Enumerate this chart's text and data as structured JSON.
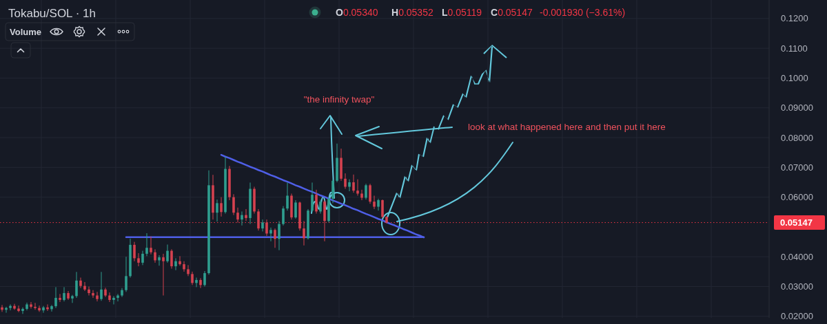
{
  "chart_data": {
    "type": "candlestick",
    "title": "Tokabu/SOL · 1h",
    "annotations": [
      "O0.05340",
      "H0.05352",
      "L0.05119",
      "C0.05147",
      "-0.001930 (−3.61%)",
      "Volume",
      "\"the infinity twap\"",
      "look at what happened here and then put it here"
    ],
    "categories": [
      null,
      null,
      null,
      null,
      null,
      null,
      null,
      null,
      null,
      null,
      null,
      null,
      null,
      null,
      null,
      null,
      null,
      null,
      null,
      null,
      null,
      null,
      null,
      null,
      null,
      null,
      null,
      null,
      null,
      null,
      null,
      null,
      null,
      null,
      null,
      null,
      null,
      null,
      null,
      null,
      null,
      null,
      null,
      null,
      null,
      null,
      null,
      null,
      null,
      null,
      null,
      null,
      null,
      null,
      null,
      null,
      null,
      null,
      null,
      null,
      null,
      null,
      null,
      null,
      null,
      null,
      null,
      null,
      null,
      null,
      null,
      null,
      null,
      null,
      null,
      null,
      null,
      null,
      null,
      null,
      null,
      null,
      null,
      null,
      null,
      null,
      null,
      null,
      null,
      null,
      null,
      null,
      null,
      null,
      null,
      null,
      null,
      null,
      null,
      null,
      null,
      null,
      null,
      null,
      null,
      null,
      null,
      null,
      null,
      null,
      null,
      null,
      null,
      null,
      null,
      null,
      null,
      null,
      null,
      null,
      null,
      null,
      null,
      null,
      null,
      null,
      null,
      null,
      null,
      null,
      null,
      null,
      null,
      null,
      null,
      null,
      null,
      null,
      null,
      null,
      null,
      null,
      null,
      null,
      null,
      null,
      null,
      null,
      null,
      null,
      null,
      null,
      null,
      null,
      null,
      null,
      null,
      null,
      null,
      null,
      null,
      null,
      null,
      null,
      null,
      null,
      null,
      null,
      null,
      null,
      null,
      null,
      null,
      null,
      null,
      null,
      null,
      null,
      null,
      null,
      null,
      null,
      null,
      null,
      null,
      null
    ],
    "ohlc": [
      [
        0.023,
        0.0238,
        0.0215,
        0.0222
      ],
      [
        0.0222,
        0.0232,
        0.0212,
        0.0228
      ],
      [
        0.0228,
        0.024,
        0.022,
        0.0235
      ],
      [
        0.0235,
        0.0242,
        0.0222,
        0.0226
      ],
      [
        0.0226,
        0.0236,
        0.0214,
        0.0218
      ],
      [
        0.0218,
        0.023,
        0.0208,
        0.0225
      ],
      [
        0.0225,
        0.0246,
        0.022,
        0.024
      ],
      [
        0.024,
        0.0248,
        0.0226,
        0.0232
      ],
      [
        0.0232,
        0.0245,
        0.0222,
        0.0228
      ],
      [
        0.0228,
        0.0236,
        0.0215,
        0.022
      ],
      [
        0.022,
        0.0235,
        0.0212,
        0.023
      ],
      [
        0.023,
        0.024,
        0.0218,
        0.0224
      ],
      [
        0.0224,
        0.0238,
        0.0216,
        0.0234
      ],
      [
        0.0234,
        0.0298,
        0.0228,
        0.0262
      ],
      [
        0.0262,
        0.0275,
        0.0248,
        0.0255
      ],
      [
        0.0255,
        0.0298,
        0.025,
        0.0278
      ],
      [
        0.0278,
        0.0285,
        0.0255,
        0.026
      ],
      [
        0.026,
        0.0272,
        0.0245,
        0.0268
      ],
      [
        0.0268,
        0.0349,
        0.0262,
        0.032
      ],
      [
        0.032,
        0.033,
        0.0295,
        0.0302
      ],
      [
        0.0302,
        0.0315,
        0.0285,
        0.029
      ],
      [
        0.029,
        0.03,
        0.027,
        0.0278
      ],
      [
        0.0278,
        0.0288,
        0.0262,
        0.027
      ],
      [
        0.027,
        0.0282,
        0.025,
        0.0258
      ],
      [
        0.0258,
        0.0349,
        0.0252,
        0.029
      ],
      [
        0.029,
        0.0296,
        0.0265,
        0.027
      ],
      [
        0.027,
        0.028,
        0.0248,
        0.0255
      ],
      [
        0.0255,
        0.0268,
        0.024,
        0.0262
      ],
      [
        0.0262,
        0.0275,
        0.025,
        0.027
      ],
      [
        0.027,
        0.0295,
        0.0265,
        0.0288
      ],
      [
        0.0288,
        0.04,
        0.0282,
        0.0335
      ],
      [
        0.0335,
        0.0461,
        0.033,
        0.044
      ],
      [
        0.044,
        0.045,
        0.0385,
        0.0395
      ],
      [
        0.0395,
        0.0412,
        0.0368,
        0.038
      ],
      [
        0.038,
        0.042,
        0.0372,
        0.041
      ],
      [
        0.041,
        0.0479,
        0.0402,
        0.043
      ],
      [
        0.043,
        0.0468,
        0.0408,
        0.0415
      ],
      [
        0.0415,
        0.0425,
        0.038,
        0.0388
      ],
      [
        0.0388,
        0.0405,
        0.037,
        0.0398
      ],
      [
        0.0398,
        0.041,
        0.027,
        0.0385
      ],
      [
        0.0385,
        0.0441,
        0.038,
        0.042
      ],
      [
        0.042,
        0.0425,
        0.036,
        0.0368
      ],
      [
        0.0368,
        0.0395,
        0.0355,
        0.0385
      ],
      [
        0.0385,
        0.0402,
        0.037,
        0.0375
      ],
      [
        0.0375,
        0.0385,
        0.035,
        0.0358
      ],
      [
        0.0358,
        0.0372,
        0.0335,
        0.0342
      ],
      [
        0.0342,
        0.035,
        0.0305,
        0.0312
      ],
      [
        0.0312,
        0.033,
        0.0298,
        0.0322
      ],
      [
        0.0322,
        0.0328,
        0.0295,
        0.0305
      ],
      [
        0.0305,
        0.0352,
        0.03,
        0.0345
      ],
      [
        0.0345,
        0.069,
        0.034,
        0.064
      ],
      [
        0.064,
        0.0675,
        0.0525,
        0.0548
      ],
      [
        0.0548,
        0.0592,
        0.0518,
        0.058
      ],
      [
        0.058,
        0.06,
        0.0535,
        0.055
      ],
      [
        0.055,
        0.0736,
        0.0545,
        0.0695
      ],
      [
        0.0695,
        0.0705,
        0.059,
        0.06
      ],
      [
        0.06,
        0.061,
        0.054,
        0.0548
      ],
      [
        0.0548,
        0.0565,
        0.0515,
        0.0525
      ],
      [
        0.0525,
        0.0552,
        0.0505,
        0.054
      ],
      [
        0.054,
        0.056,
        0.052,
        0.053
      ],
      [
        0.053,
        0.0649,
        0.051,
        0.0628
      ],
      [
        0.0628,
        0.0635,
        0.0545,
        0.0552
      ],
      [
        0.0552,
        0.056,
        0.0488,
        0.0495
      ],
      [
        0.0495,
        0.0525,
        0.0485,
        0.0515
      ],
      [
        0.0515,
        0.0525,
        0.047,
        0.0478
      ],
      [
        0.0478,
        0.0498,
        0.0452,
        0.049
      ],
      [
        0.049,
        0.0495,
        0.043,
        0.046
      ],
      [
        0.046,
        0.052,
        0.0422,
        0.051
      ],
      [
        0.051,
        0.057,
        0.0505,
        0.0562
      ],
      [
        0.0562,
        0.0649,
        0.0555,
        0.0605
      ],
      [
        0.0605,
        0.0612,
        0.0525,
        0.0532
      ],
      [
        0.0532,
        0.059,
        0.0528,
        0.0582
      ],
      [
        0.0582,
        0.0585,
        0.0488,
        0.0495
      ],
      [
        0.0495,
        0.052,
        0.0438,
        0.0462
      ],
      [
        0.0462,
        0.056,
        0.0458,
        0.0555
      ],
      [
        0.0555,
        0.0649,
        0.055,
        0.0608
      ],
      [
        0.0608,
        0.0625,
        0.0545,
        0.0552
      ],
      [
        0.0552,
        0.0592,
        0.0545,
        0.0585
      ],
      [
        0.0585,
        0.059,
        0.0452,
        0.052
      ],
      [
        0.052,
        0.06,
        0.0515,
        0.0595
      ],
      [
        0.0595,
        0.066,
        0.058,
        0.0655
      ],
      [
        0.0655,
        0.078,
        0.065,
        0.0732
      ],
      [
        0.0732,
        0.0763,
        0.0655,
        0.0662
      ],
      [
        0.0662,
        0.068,
        0.0628,
        0.0635
      ],
      [
        0.0635,
        0.066,
        0.062,
        0.065
      ],
      [
        0.065,
        0.0676,
        0.0615,
        0.0622
      ],
      [
        0.0622,
        0.066,
        0.0605,
        0.0612
      ],
      [
        0.0612,
        0.0625,
        0.059,
        0.0598
      ],
      [
        0.0598,
        0.0645,
        0.0592,
        0.064
      ],
      [
        0.064,
        0.0645,
        0.0578,
        0.0585
      ],
      [
        0.0585,
        0.0605,
        0.056,
        0.0568
      ],
      [
        0.0568,
        0.0595,
        0.0555,
        0.059
      ],
      [
        0.059,
        0.0592,
        0.053,
        0.0534
      ],
      [
        0.0534,
        0.05352,
        0.05119,
        0.05147
      ],
      null,
      null,
      null,
      null,
      null,
      null,
      null,
      null,
      null,
      null,
      null,
      null,
      null,
      null,
      null,
      null,
      null,
      null,
      null,
      null,
      null,
      null,
      null,
      null,
      null,
      null,
      null,
      null,
      null,
      null,
      null,
      null,
      null,
      null,
      null,
      null,
      null,
      null,
      null,
      null,
      null,
      null,
      null,
      null,
      null,
      null,
      null,
      null,
      null,
      null,
      null,
      null,
      null,
      null,
      null,
      null,
      null,
      null,
      null,
      null,
      null,
      null,
      null,
      null,
      null,
      null,
      null,
      null,
      null,
      null,
      null,
      null,
      null,
      null,
      null,
      null,
      null,
      null,
      null,
      null,
      null,
      null,
      null,
      null,
      null,
      null,
      null,
      null,
      null,
      null,
      null,
      null
    ],
    "series": [
      {
        "type": "line",
        "color": "#4f5fe8",
        "values": [
          null,
          null,
          null,
          null,
          null,
          null,
          null,
          null,
          null,
          null,
          null,
          null,
          null,
          null,
          null,
          null,
          null,
          null,
          null,
          null,
          null,
          null,
          null,
          null,
          null,
          null,
          null,
          null,
          null,
          null,
          0.0466,
          0.0466,
          0.0466,
          0.0466,
          0.0466,
          0.0466,
          0.0466,
          0.0466,
          0.0466,
          0.0466,
          0.0466,
          0.0466,
          0.0466,
          0.0466,
          0.0466,
          0.0466,
          0.0466,
          0.0466,
          0.0466,
          0.0466,
          0.0466,
          0.0466,
          0.0466,
          0.0466,
          0.0466,
          0.0466,
          0.0466,
          0.0466,
          0.0466,
          0.0466,
          0.0466,
          0.0466,
          0.0466,
          0.0466,
          0.0466,
          0.0466,
          0.0466,
          0.0466,
          0.0466,
          0.0466,
          0.0466,
          0.0466,
          0.0466,
          0.0466,
          0.0466,
          0.0466,
          0.0466,
          0.0466,
          0.0466,
          0.0466,
          0.0466,
          0.0466,
          0.0466,
          0.0466,
          0.0466,
          0.0466,
          0.0466,
          0.0466,
          0.0466,
          0.0466,
          0.0466,
          0.0466,
          0.0466,
          0.0466,
          0.0466,
          0.0466,
          0.0466,
          0.0466,
          0.0466,
          0.0466,
          0.0466,
          0.0466,
          0.0466,
          null,
          null,
          null,
          null,
          null,
          null,
          null,
          null,
          null,
          null,
          null,
          null,
          null,
          null,
          null,
          null,
          null,
          null,
          null,
          null,
          null,
          null,
          null,
          null,
          null,
          null,
          null,
          null,
          null,
          null,
          null,
          null,
          null,
          null,
          null,
          null,
          null,
          null,
          null,
          null,
          null,
          null,
          null,
          null,
          null,
          null,
          null,
          null,
          null,
          null,
          null,
          null,
          null,
          null,
          null,
          null,
          null,
          null,
          null,
          null,
          null,
          null,
          null,
          null,
          null,
          null,
          null,
          null,
          null,
          null,
          null,
          null,
          null,
          null,
          null,
          null,
          null,
          null,
          null,
          null,
          null,
          null,
          null
        ]
      },
      {
        "type": "line",
        "color": "#4f5fe8",
        "values": [
          null,
          null,
          null,
          null,
          null,
          null,
          null,
          null,
          null,
          null,
          null,
          null,
          null,
          null,
          null,
          null,
          null,
          null,
          null,
          null,
          null,
          null,
          null,
          null,
          null,
          null,
          null,
          null,
          null,
          null,
          null,
          null,
          null,
          null,
          null,
          null,
          null,
          null,
          null,
          null,
          null,
          null,
          null,
          null,
          null,
          null,
          null,
          null,
          null,
          null,
          null,
          null,
          null,
          0.0742,
          0.0736,
          0.0731,
          0.0725,
          0.0719,
          0.0714,
          0.0708,
          0.0702,
          0.0697,
          0.0691,
          0.0686,
          0.068,
          0.0674,
          0.0669,
          0.0663,
          0.0657,
          0.0652,
          0.0646,
          0.064,
          0.0635,
          0.0629,
          0.0623,
          0.0618,
          0.0612,
          0.0606,
          0.0601,
          0.0595,
          0.0589,
          0.0584,
          0.0578,
          0.0573,
          0.0567,
          0.0561,
          0.0556,
          0.055,
          0.0544,
          0.0539,
          0.0533,
          0.0527,
          0.0522,
          0.0516,
          0.051,
          0.0505,
          0.0499,
          0.0493,
          0.0488,
          0.0482,
          0.0476,
          0.0471,
          0.0465,
          null,
          null,
          null,
          null,
          null,
          null,
          null,
          null,
          null,
          null,
          null,
          null,
          null,
          null,
          null,
          null,
          null,
          null,
          null,
          null,
          null,
          null,
          null,
          null,
          null,
          null,
          null,
          null,
          null,
          null,
          null,
          null,
          null,
          null,
          null,
          null,
          null,
          null,
          null,
          null,
          null,
          null,
          null,
          null,
          null,
          null,
          null,
          null,
          null,
          null,
          null,
          null,
          null,
          null,
          null,
          null,
          null,
          null,
          null,
          null,
          null,
          null,
          null,
          null,
          null,
          null,
          null,
          null,
          null,
          null,
          null,
          null,
          null,
          null,
          null,
          null,
          null,
          null,
          null,
          null,
          null,
          null,
          null
        ]
      }
    ],
    "ylim": [
      0.0195,
      0.1262
    ],
    "yticks": [
      {
        "value": 0.02,
        "label": "0.02000"
      },
      {
        "value": 0.03,
        "label": "0.03000"
      },
      {
        "value": 0.04,
        "label": "0.04000"
      },
      {
        "value": 0.06,
        "label": "0.06000"
      },
      {
        "value": 0.07,
        "label": "0.07000"
      },
      {
        "value": 0.08,
        "label": "0.08000"
      },
      {
        "value": 0.09,
        "label": "0.09000"
      },
      {
        "value": 0.1,
        "label": "0.1000"
      },
      {
        "value": 0.11,
        "label": "0.1100"
      },
      {
        "value": 0.12,
        "label": "0.1200"
      }
    ],
    "ref_lines": [
      {
        "axis": "y",
        "value": 0.05147,
        "label": "0.05147",
        "color": "#f23645",
        "line_style": "dotted"
      }
    ],
    "grid": true
  }
}
